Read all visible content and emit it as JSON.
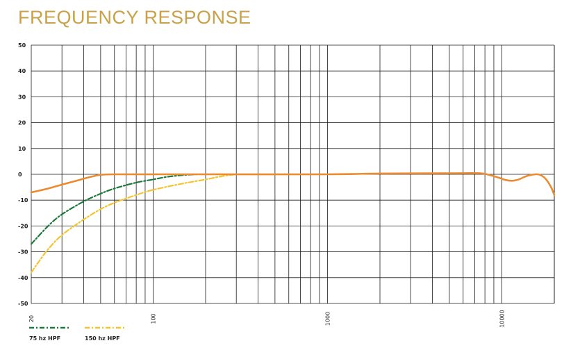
{
  "title": "FREQUENCY RESPONSE",
  "colors": {
    "title": "#c8a24a",
    "grid": "#1a1a1a"
  },
  "chart_data": {
    "type": "line",
    "title": "FREQUENCY RESPONSE",
    "xscale": "log",
    "xlim": [
      20,
      20000
    ],
    "ylim": [
      -50,
      50
    ],
    "ytick_step": 10,
    "yticks": [
      "50",
      "40",
      "30",
      "20",
      "10",
      "0",
      "-10",
      "-20",
      "-30",
      "-40",
      "-50"
    ],
    "xtick_labels": [
      {
        "value": 20,
        "label": "20"
      },
      {
        "value": 100,
        "label": "100"
      },
      {
        "value": 1000,
        "label": "1000"
      },
      {
        "value": 10000,
        "label": "10000"
      }
    ],
    "grid": true,
    "series": [
      {
        "key": "main",
        "color": "#ec8a2e",
        "dash": "solid",
        "points": [
          [
            20,
            -7
          ],
          [
            25,
            -5.5
          ],
          [
            30,
            -4
          ],
          [
            35,
            -2.8
          ],
          [
            40,
            -1.7
          ],
          [
            45,
            -0.8
          ],
          [
            50,
            -0.2
          ],
          [
            60,
            0
          ],
          [
            100,
            0
          ],
          [
            200,
            0
          ],
          [
            1000,
            0
          ],
          [
            2000,
            0.3
          ],
          [
            5000,
            0.4
          ],
          [
            7500,
            0.4
          ],
          [
            8500,
            -0.3
          ],
          [
            9500,
            -1.2
          ],
          [
            10500,
            -2.2
          ],
          [
            11500,
            -2.5
          ],
          [
            12500,
            -2
          ],
          [
            14000,
            -0.6
          ],
          [
            16000,
            0
          ],
          [
            17500,
            -1.2
          ],
          [
            19000,
            -4.5
          ],
          [
            20000,
            -8
          ]
        ]
      },
      {
        "key": "hpf75",
        "name": "75 hz HPF",
        "color": "#1b7a3a",
        "dash": "dashdot",
        "points": [
          [
            20,
            -27
          ],
          [
            25,
            -20
          ],
          [
            30,
            -15.5
          ],
          [
            40,
            -10.5
          ],
          [
            50,
            -7.5
          ],
          [
            60,
            -5.5
          ],
          [
            80,
            -3.2
          ],
          [
            100,
            -2
          ],
          [
            120,
            -1
          ],
          [
            150,
            -0.3
          ],
          [
            180,
            0
          ]
        ]
      },
      {
        "key": "hpf150",
        "name": "150 hz HPF",
        "color": "#f4c430",
        "dash": "dashdot",
        "points": [
          [
            20,
            -38
          ],
          [
            22,
            -34
          ],
          [
            25,
            -29
          ],
          [
            30,
            -23.5
          ],
          [
            40,
            -17.5
          ],
          [
            50,
            -13.5
          ],
          [
            60,
            -11
          ],
          [
            80,
            -8
          ],
          [
            100,
            -6
          ],
          [
            150,
            -3.5
          ],
          [
            200,
            -2
          ],
          [
            250,
            -0.7
          ],
          [
            300,
            0
          ]
        ]
      }
    ],
    "legend": {
      "placement": "bottom-left",
      "entries": [
        {
          "label": "75 hz HPF",
          "color": "#1b7a3a"
        },
        {
          "label": "150 hz HPF",
          "color": "#f4c430"
        }
      ]
    }
  }
}
